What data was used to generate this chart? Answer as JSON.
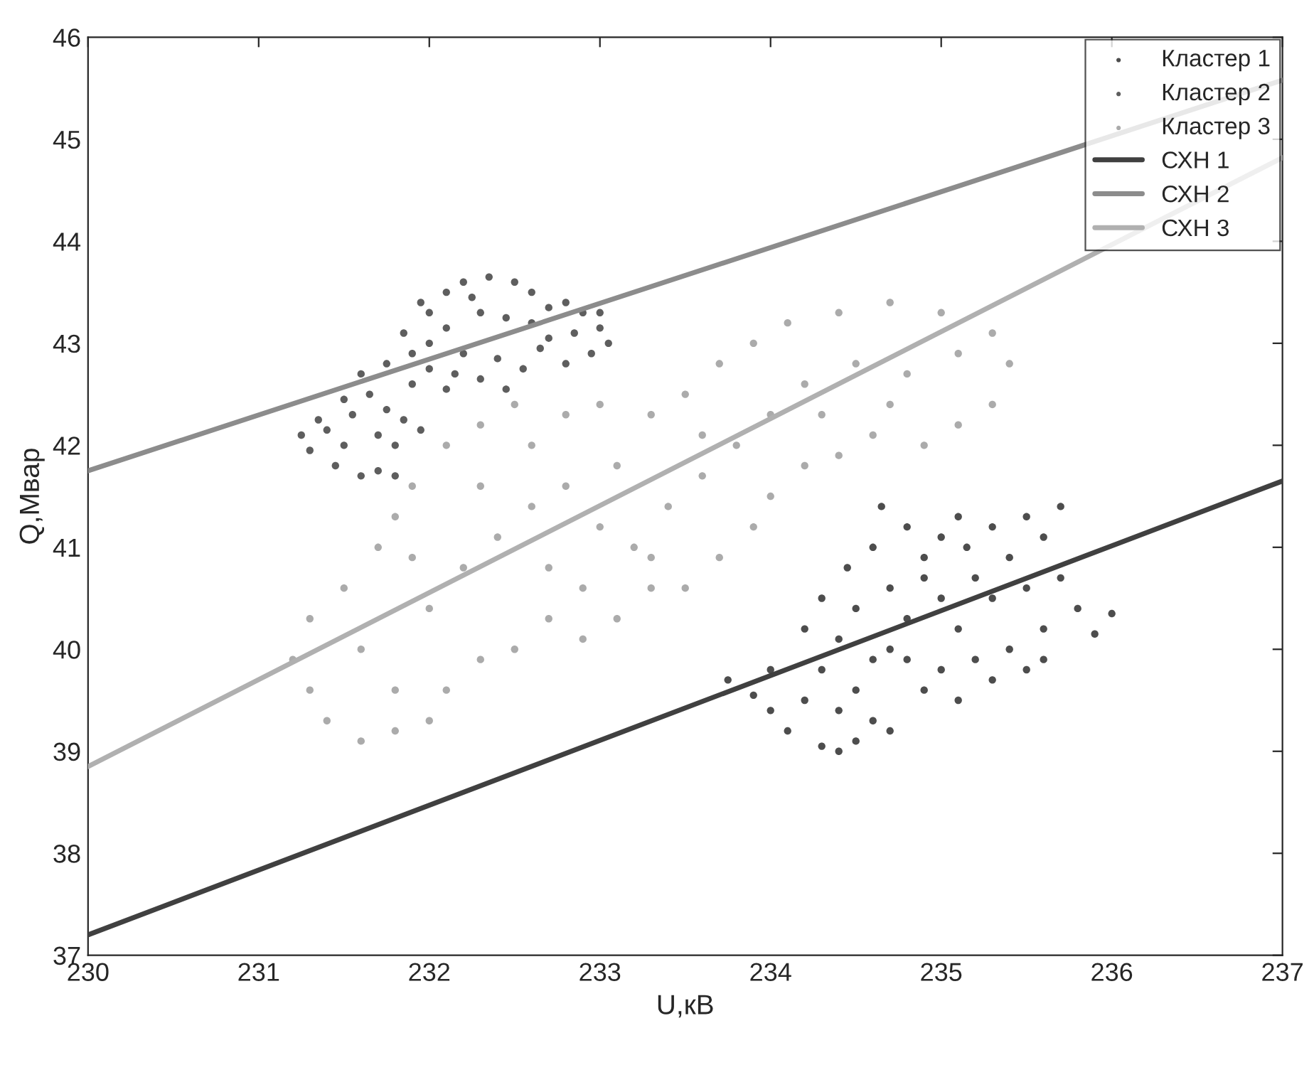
{
  "chart_data": {
    "type": "scatter",
    "xlabel": "U,кВ",
    "ylabel": "Q,Мвар",
    "xlim": [
      230,
      237
    ],
    "ylim": [
      37,
      46
    ],
    "xticks": [
      230,
      231,
      232,
      233,
      234,
      235,
      236,
      237
    ],
    "yticks": [
      37,
      38,
      39,
      40,
      41,
      42,
      43,
      44,
      45,
      46
    ],
    "grid": false,
    "legend": "top right",
    "series": [
      {
        "name": "Кластер 1",
        "color": "#4d4d4d",
        "marker": "circle",
        "x": [
          233.75,
          233.9,
          234.0,
          234.1,
          234.3,
          234.5,
          234.6,
          234.2,
          234.4,
          234.5,
          234.0,
          234.3,
          234.6,
          234.4,
          234.2,
          234.5,
          234.3,
          234.45,
          234.6,
          234.65,
          234.8,
          234.7,
          234.9,
          235.0,
          235.1,
          235.3,
          235.5,
          235.7,
          235.6,
          235.4,
          235.2,
          235.0,
          234.8,
          235.1,
          235.3,
          235.5,
          235.7,
          235.8,
          236.0,
          235.9,
          235.6,
          235.4,
          235.2,
          235.0,
          234.8,
          234.9,
          235.1,
          235.3,
          235.5,
          234.7,
          234.4,
          235.6,
          234.9,
          235.15,
          234.7
        ],
        "values": [
          39.7,
          39.55,
          39.4,
          39.2,
          39.05,
          39.1,
          39.3,
          39.5,
          39.4,
          39.6,
          39.8,
          39.8,
          39.9,
          40.1,
          40.2,
          40.4,
          40.5,
          40.8,
          41.0,
          41.4,
          41.2,
          40.6,
          40.9,
          41.1,
          41.3,
          41.2,
          41.3,
          41.4,
          41.1,
          40.9,
          40.7,
          40.5,
          40.3,
          40.2,
          40.5,
          40.6,
          40.7,
          40.4,
          40.35,
          40.15,
          40.2,
          40.0,
          39.9,
          39.8,
          39.9,
          39.6,
          39.5,
          39.7,
          39.8,
          39.2,
          39.0,
          39.9,
          40.7,
          41.0,
          40.0
        ]
      },
      {
        "name": "Кластер 2",
        "color": "#5e5e5e",
        "marker": "circle",
        "x": [
          231.25,
          231.35,
          231.3,
          231.45,
          231.5,
          231.6,
          231.7,
          231.8,
          231.55,
          231.7,
          231.8,
          231.65,
          231.5,
          231.75,
          231.9,
          231.85,
          231.6,
          231.75,
          231.9,
          232.0,
          231.85,
          232.0,
          232.1,
          232.2,
          232.35,
          232.5,
          232.6,
          232.1,
          232.3,
          232.45,
          232.2,
          232.4,
          232.6,
          232.7,
          232.8,
          232.9,
          233.0,
          233.05,
          232.95,
          232.8,
          232.65,
          232.55,
          232.3,
          232.15,
          232.0,
          232.1,
          232.45,
          231.95,
          232.25,
          232.7,
          232.85,
          233.0,
          231.4,
          231.95
        ],
        "values": [
          42.1,
          42.25,
          41.95,
          41.8,
          42.0,
          41.7,
          41.75,
          41.7,
          42.3,
          42.1,
          42.0,
          42.5,
          42.45,
          42.35,
          42.6,
          42.25,
          42.7,
          42.8,
          42.9,
          43.0,
          43.1,
          43.3,
          43.5,
          43.6,
          43.65,
          43.6,
          43.5,
          43.15,
          43.3,
          43.25,
          42.9,
          42.85,
          43.2,
          43.35,
          43.4,
          43.3,
          43.15,
          43.0,
          42.9,
          42.8,
          42.95,
          42.75,
          42.65,
          42.7,
          42.75,
          42.55,
          42.55,
          43.4,
          43.45,
          43.05,
          43.1,
          43.3,
          42.15,
          42.15
        ]
      },
      {
        "name": "Кластер 3",
        "color": "#ababab",
        "marker": "circle",
        "x": [
          231.2,
          231.3,
          231.4,
          231.6,
          231.8,
          232.0,
          232.1,
          232.3,
          232.5,
          232.7,
          232.9,
          233.1,
          233.3,
          233.5,
          233.7,
          233.9,
          234.0,
          234.2,
          234.4,
          234.6,
          234.9,
          235.1,
          235.3,
          235.4,
          235.3,
          235.0,
          234.7,
          234.4,
          234.1,
          233.9,
          233.7,
          233.5,
          233.3,
          233.0,
          232.8,
          232.5,
          232.3,
          232.1,
          231.9,
          231.8,
          231.7,
          231.5,
          231.3,
          231.6,
          231.8,
          232.0,
          232.2,
          232.4,
          232.6,
          232.8,
          233.0,
          233.2,
          233.4,
          233.6,
          233.8,
          234.0,
          234.2,
          234.5,
          234.8,
          235.1,
          232.3,
          232.6,
          233.1,
          233.3,
          232.7,
          234.3,
          233.6,
          232.9,
          231.9,
          234.7
        ],
        "values": [
          39.9,
          39.6,
          39.3,
          39.1,
          39.2,
          39.3,
          39.6,
          39.9,
          40.0,
          40.3,
          40.1,
          40.3,
          40.6,
          40.6,
          40.9,
          41.2,
          41.5,
          41.8,
          41.9,
          42.1,
          42.0,
          42.2,
          42.4,
          42.8,
          43.1,
          43.3,
          43.4,
          43.3,
          43.2,
          43.0,
          42.8,
          42.5,
          42.3,
          42.4,
          42.3,
          42.4,
          42.2,
          42.0,
          41.6,
          41.3,
          41.0,
          40.6,
          40.3,
          40.0,
          39.6,
          40.4,
          40.8,
          41.1,
          41.4,
          41.6,
          41.2,
          41.0,
          41.4,
          41.7,
          42.0,
          42.3,
          42.6,
          42.8,
          42.7,
          42.9,
          41.6,
          42.0,
          41.8,
          40.9,
          40.8,
          42.3,
          42.1,
          40.6,
          40.9,
          42.4
        ]
      },
      {
        "name": "СХН 1",
        "type": "line",
        "marker": "none",
        "color": "#404040",
        "x": [
          230,
          237
        ],
        "values": [
          37.2,
          41.65
        ]
      },
      {
        "name": "СХН 2",
        "type": "line",
        "marker": "none",
        "color": "#8c8c8c",
        "x": [
          230,
          237
        ],
        "values": [
          41.75,
          45.58
        ]
      },
      {
        "name": "СХН 3",
        "type": "line",
        "marker": "none",
        "color": "#b0b0b0",
        "x": [
          230,
          237
        ],
        "values": [
          38.85,
          44.82
        ]
      }
    ]
  }
}
